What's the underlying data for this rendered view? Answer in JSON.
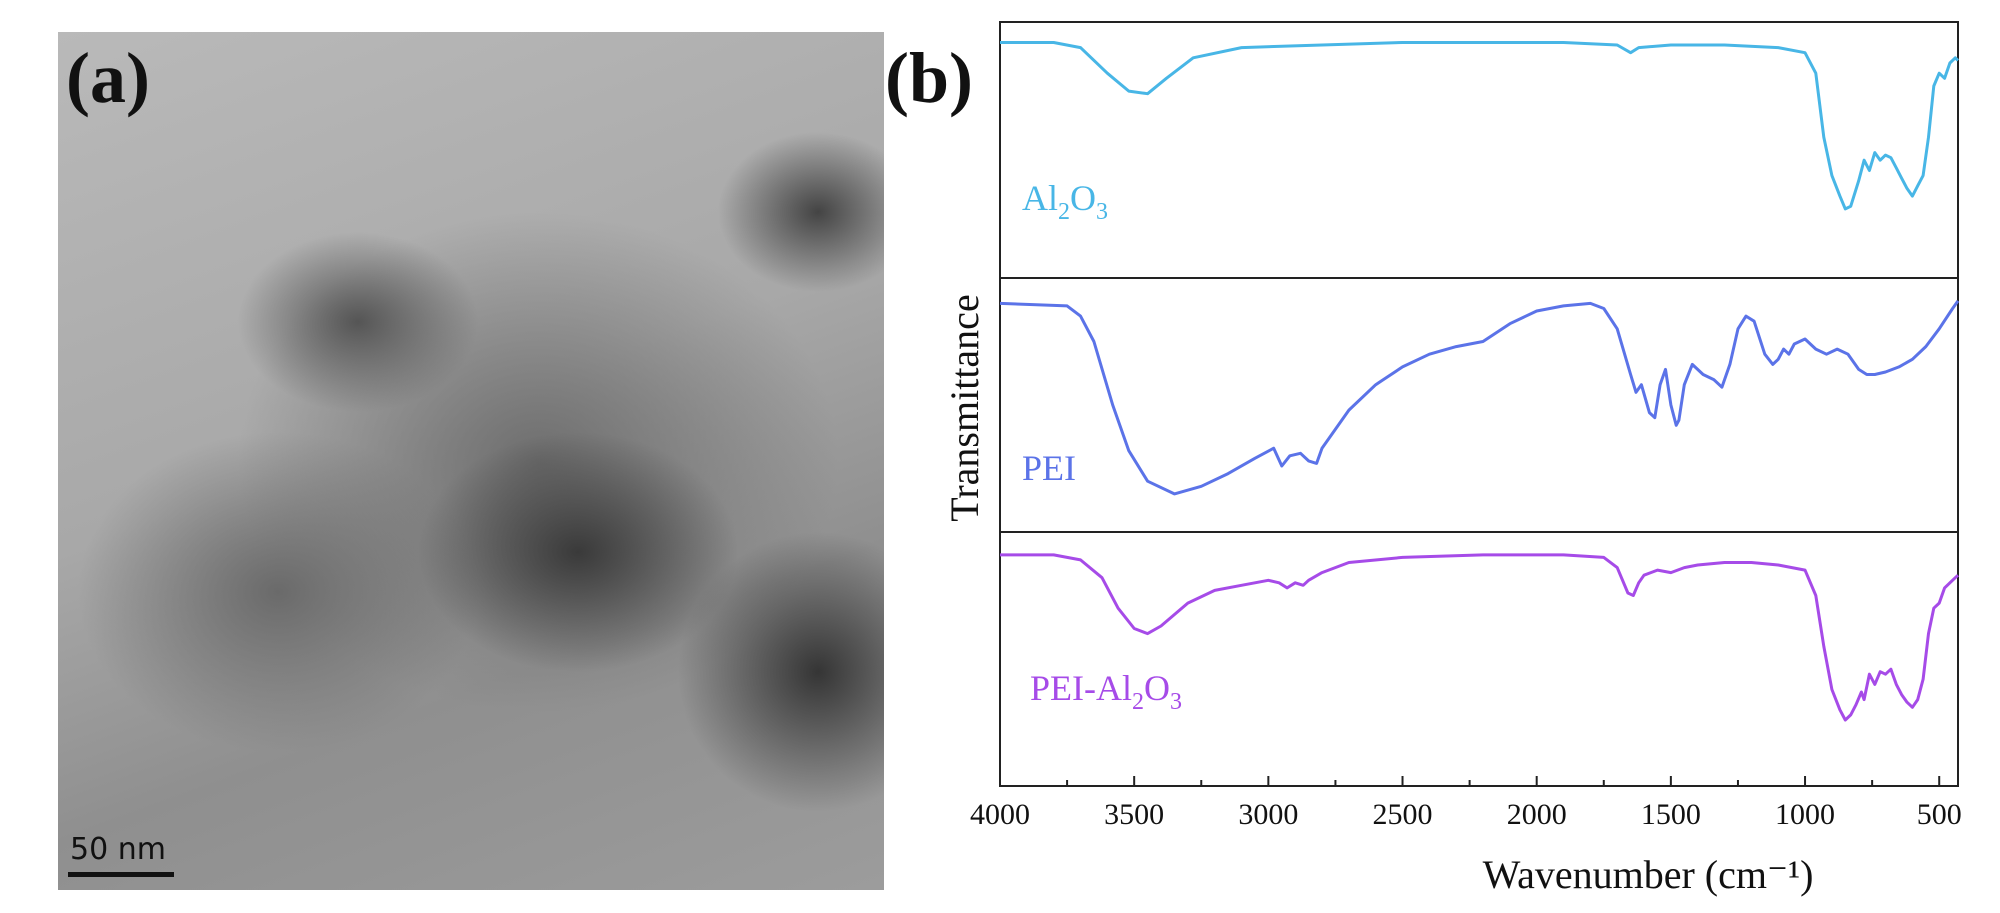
{
  "panel_a": {
    "label": "(a)",
    "scale_bar_text": "50 nm"
  },
  "chart_data": {
    "type": "line",
    "panel_label": "(b)",
    "xlabel": "Wavenumber (cm⁻¹)",
    "ylabel": "Transmittance",
    "xlim": [
      4000,
      430
    ],
    "x_inverted": true,
    "x_ticks": [
      4000,
      3500,
      3000,
      2500,
      2000,
      1500,
      1000,
      500
    ],
    "stacked_panels": true,
    "series": [
      {
        "name": "Al2O3",
        "label_parts": [
          "Al",
          "2",
          "O",
          "3"
        ],
        "color": "#48b6e6",
        "points": [
          [
            4000,
            0.92
          ],
          [
            3800,
            0.92
          ],
          [
            3700,
            0.9
          ],
          [
            3600,
            0.8
          ],
          [
            3520,
            0.73
          ],
          [
            3450,
            0.72
          ],
          [
            3380,
            0.78
          ],
          [
            3280,
            0.86
          ],
          [
            3100,
            0.9
          ],
          [
            2800,
            0.91
          ],
          [
            2500,
            0.92
          ],
          [
            2200,
            0.92
          ],
          [
            1900,
            0.92
          ],
          [
            1700,
            0.91
          ],
          [
            1650,
            0.88
          ],
          [
            1620,
            0.9
          ],
          [
            1500,
            0.91
          ],
          [
            1300,
            0.91
          ],
          [
            1100,
            0.9
          ],
          [
            1000,
            0.88
          ],
          [
            960,
            0.8
          ],
          [
            930,
            0.55
          ],
          [
            900,
            0.4
          ],
          [
            870,
            0.32
          ],
          [
            850,
            0.27
          ],
          [
            830,
            0.28
          ],
          [
            800,
            0.38
          ],
          [
            780,
            0.46
          ],
          [
            760,
            0.42
          ],
          [
            740,
            0.49
          ],
          [
            720,
            0.46
          ],
          [
            700,
            0.48
          ],
          [
            680,
            0.47
          ],
          [
            660,
            0.43
          ],
          [
            640,
            0.39
          ],
          [
            620,
            0.35
          ],
          [
            600,
            0.32
          ],
          [
            580,
            0.36
          ],
          [
            560,
            0.4
          ],
          [
            540,
            0.55
          ],
          [
            520,
            0.75
          ],
          [
            500,
            0.8
          ],
          [
            480,
            0.78
          ],
          [
            460,
            0.84
          ],
          [
            440,
            0.86
          ],
          [
            430,
            0.85
          ]
        ]
      },
      {
        "name": "PEI",
        "label_parts": [
          "PEI"
        ],
        "color": "#5b73e8",
        "points": [
          [
            4000,
            0.9
          ],
          [
            3750,
            0.89
          ],
          [
            3700,
            0.85
          ],
          [
            3650,
            0.75
          ],
          [
            3580,
            0.5
          ],
          [
            3520,
            0.32
          ],
          [
            3450,
            0.2
          ],
          [
            3350,
            0.15
          ],
          [
            3250,
            0.18
          ],
          [
            3150,
            0.23
          ],
          [
            3050,
            0.29
          ],
          [
            2980,
            0.33
          ],
          [
            2950,
            0.26
          ],
          [
            2920,
            0.3
          ],
          [
            2880,
            0.31
          ],
          [
            2850,
            0.28
          ],
          [
            2820,
            0.27
          ],
          [
            2800,
            0.33
          ],
          [
            2700,
            0.48
          ],
          [
            2600,
            0.58
          ],
          [
            2500,
            0.65
          ],
          [
            2400,
            0.7
          ],
          [
            2300,
            0.73
          ],
          [
            2200,
            0.75
          ],
          [
            2100,
            0.82
          ],
          [
            2000,
            0.87
          ],
          [
            1900,
            0.89
          ],
          [
            1800,
            0.9
          ],
          [
            1750,
            0.88
          ],
          [
            1700,
            0.8
          ],
          [
            1650,
            0.62
          ],
          [
            1630,
            0.55
          ],
          [
            1610,
            0.58
          ],
          [
            1580,
            0.47
          ],
          [
            1560,
            0.45
          ],
          [
            1540,
            0.58
          ],
          [
            1520,
            0.64
          ],
          [
            1500,
            0.5
          ],
          [
            1480,
            0.42
          ],
          [
            1470,
            0.44
          ],
          [
            1450,
            0.58
          ],
          [
            1420,
            0.66
          ],
          [
            1380,
            0.62
          ],
          [
            1340,
            0.6
          ],
          [
            1310,
            0.57
          ],
          [
            1280,
            0.66
          ],
          [
            1250,
            0.8
          ],
          [
            1220,
            0.85
          ],
          [
            1190,
            0.83
          ],
          [
            1150,
            0.7
          ],
          [
            1120,
            0.66
          ],
          [
            1100,
            0.68
          ],
          [
            1080,
            0.72
          ],
          [
            1060,
            0.7
          ],
          [
            1040,
            0.74
          ],
          [
            1000,
            0.76
          ],
          [
            960,
            0.72
          ],
          [
            920,
            0.7
          ],
          [
            880,
            0.72
          ],
          [
            840,
            0.7
          ],
          [
            800,
            0.64
          ],
          [
            770,
            0.62
          ],
          [
            740,
            0.62
          ],
          [
            700,
            0.63
          ],
          [
            650,
            0.65
          ],
          [
            600,
            0.68
          ],
          [
            550,
            0.73
          ],
          [
            500,
            0.8
          ],
          [
            450,
            0.88
          ],
          [
            430,
            0.91
          ]
        ]
      },
      {
        "name": "PEI-Al2O3",
        "label_parts": [
          "PEI-Al",
          "2",
          "O",
          "3"
        ],
        "color": "#a64be8",
        "points": [
          [
            4000,
            0.91
          ],
          [
            3800,
            0.91
          ],
          [
            3700,
            0.89
          ],
          [
            3620,
            0.82
          ],
          [
            3560,
            0.7
          ],
          [
            3500,
            0.62
          ],
          [
            3450,
            0.6
          ],
          [
            3400,
            0.63
          ],
          [
            3300,
            0.72
          ],
          [
            3200,
            0.77
          ],
          [
            3100,
            0.79
          ],
          [
            3000,
            0.81
          ],
          [
            2960,
            0.8
          ],
          [
            2930,
            0.78
          ],
          [
            2900,
            0.8
          ],
          [
            2870,
            0.79
          ],
          [
            2850,
            0.81
          ],
          [
            2800,
            0.84
          ],
          [
            2700,
            0.88
          ],
          [
            2500,
            0.9
          ],
          [
            2200,
            0.91
          ],
          [
            1900,
            0.91
          ],
          [
            1750,
            0.9
          ],
          [
            1700,
            0.86
          ],
          [
            1660,
            0.76
          ],
          [
            1640,
            0.75
          ],
          [
            1620,
            0.8
          ],
          [
            1600,
            0.83
          ],
          [
            1550,
            0.85
          ],
          [
            1500,
            0.84
          ],
          [
            1450,
            0.86
          ],
          [
            1400,
            0.87
          ],
          [
            1300,
            0.88
          ],
          [
            1200,
            0.88
          ],
          [
            1100,
            0.87
          ],
          [
            1000,
            0.85
          ],
          [
            960,
            0.75
          ],
          [
            930,
            0.55
          ],
          [
            900,
            0.38
          ],
          [
            870,
            0.3
          ],
          [
            850,
            0.26
          ],
          [
            830,
            0.28
          ],
          [
            810,
            0.32
          ],
          [
            790,
            0.37
          ],
          [
            780,
            0.34
          ],
          [
            760,
            0.44
          ],
          [
            740,
            0.4
          ],
          [
            720,
            0.45
          ],
          [
            700,
            0.44
          ],
          [
            680,
            0.46
          ],
          [
            660,
            0.4
          ],
          [
            640,
            0.36
          ],
          [
            620,
            0.33
          ],
          [
            600,
            0.31
          ],
          [
            580,
            0.34
          ],
          [
            560,
            0.42
          ],
          [
            540,
            0.6
          ],
          [
            520,
            0.7
          ],
          [
            500,
            0.72
          ],
          [
            480,
            0.78
          ],
          [
            460,
            0.8
          ],
          [
            440,
            0.82
          ],
          [
            430,
            0.83
          ]
        ]
      }
    ]
  }
}
